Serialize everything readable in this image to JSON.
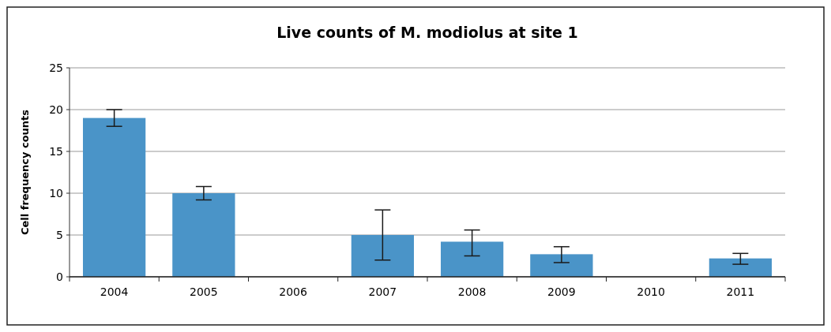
{
  "chart_data": {
    "type": "bar",
    "title": "Live counts of M. modiolus at site 1",
    "ylabel": "Cell frequency counts",
    "categories": [
      "2004",
      "2005",
      "2006",
      "2007",
      "2008",
      "2009",
      "2010",
      "2011"
    ],
    "values": [
      19,
      10,
      null,
      5,
      4.2,
      2.7,
      null,
      2.2
    ],
    "errors": [
      [
        18,
        20
      ],
      [
        9.2,
        10.8
      ],
      null,
      [
        2,
        8
      ],
      [
        2.5,
        5.6
      ],
      [
        1.7,
        3.6
      ],
      null,
      [
        1.5,
        2.8
      ]
    ],
    "color": "#4a94c8",
    "ylim": [
      0,
      25
    ],
    "yticks": [
      0,
      5,
      10,
      15,
      20,
      25
    ],
    "grid": "y"
  }
}
